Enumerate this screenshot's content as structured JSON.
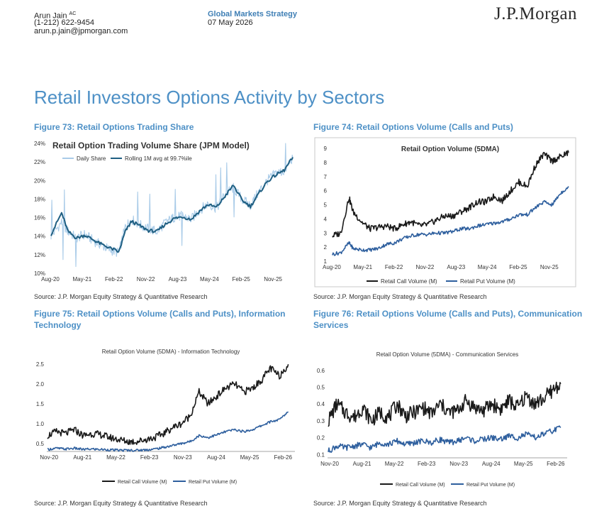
{
  "header": {
    "author_name": "Arun Jain",
    "author_sup": "AC",
    "phone": "(1-212) 622-9454",
    "email": "arun.p.jain@jpmorgan.com",
    "publication": "Global Markets Strategy",
    "date": "07 May 2026",
    "logo": "J.P.Morgan"
  },
  "page_title": "Retail Investors Options Activity by Sectors",
  "figures": {
    "f73": {
      "caption": "Figure 73: Retail Options Trading Share",
      "source": "Source: J.P. Morgan Equity Strategy & Quantitative Research"
    },
    "f74": {
      "caption": "Figure 74: Retail Options Volume (Calls and Puts)",
      "source": "Source: J.P. Morgan Equity Strategy & Quantitative Research"
    },
    "f75": {
      "caption_line1": "Figure 75: Retail Options Volume (Calls and Puts), Information",
      "caption_line2": "Technology",
      "source": "Source: J.P. Morgan Equity Strategy & Quantitative Research"
    },
    "f76": {
      "caption_line1": "Figure 76: Retail Options Volume (Calls and Puts), Communication",
      "caption_line2": "Services",
      "source": "Source: J.P. Morgan Equity Strategy & Quantitative Research"
    }
  },
  "colors": {
    "light_blue": "#a9cbe8",
    "dark_teal": "#1f5f82",
    "black": "#1a1a1a",
    "put_blue": "#2e5f9e",
    "caption_blue": "#4d90c6"
  },
  "chart_data": [
    {
      "id": "f73",
      "type": "line",
      "title": "Retail Option Trading Volume Share (JPM Model)",
      "x_tick_labels": [
        "Aug-20",
        "May-21",
        "Feb-22",
        "Nov-22",
        "Aug-23",
        "May-24",
        "Feb-25",
        "Nov-25"
      ],
      "y_tick_labels": [
        "10%",
        "12%",
        "14%",
        "16%",
        "18%",
        "20%",
        "22%",
        "24%"
      ],
      "ylim": [
        10,
        24
      ],
      "y_unit": "%",
      "legend_position": "top",
      "series": [
        {
          "name": "Daily Share",
          "x": [
            2020.6,
            2020.85,
            2021.0,
            2021.2,
            2021.4,
            2021.6,
            2021.8,
            2022.0,
            2022.2,
            2022.35,
            2022.5,
            2022.7,
            2022.9,
            2023.1,
            2023.3,
            2023.5,
            2023.7,
            2023.9,
            2024.1,
            2024.3,
            2024.5,
            2024.7,
            2024.9,
            2025.1,
            2025.3,
            2025.5,
            2025.7,
            2025.9,
            2026.1,
            2026.3
          ],
          "values": [
            14,
            15.5,
            14.5,
            13.8,
            14.2,
            13.5,
            13,
            12.5,
            12.2,
            15,
            15.8,
            15.2,
            14.8,
            14.5,
            15.5,
            16,
            16.2,
            15.8,
            16.8,
            17.5,
            17,
            18.5,
            19.2,
            18,
            17.3,
            18.8,
            20,
            20.8,
            21,
            22.5
          ]
        },
        {
          "name": "Rolling 1M avg at 99.7%ile",
          "x": [
            2020.6,
            2020.85,
            2021.0,
            2021.2,
            2021.4,
            2021.6,
            2021.8,
            2022.0,
            2022.2,
            2022.35,
            2022.5,
            2022.7,
            2022.9,
            2023.1,
            2023.3,
            2023.5,
            2023.7,
            2023.9,
            2024.1,
            2024.3,
            2024.5,
            2024.7,
            2024.9,
            2025.1,
            2025.3,
            2025.5,
            2025.7,
            2025.9,
            2026.1,
            2026.3
          ],
          "values": [
            14.2,
            16.5,
            14.5,
            13.8,
            14.1,
            13.6,
            13.1,
            12.7,
            12.3,
            14.5,
            15.6,
            15.1,
            14.6,
            14.5,
            15.3,
            15.9,
            16.1,
            15.8,
            16.7,
            17.4,
            17.1,
            18.3,
            19.5,
            17.9,
            17.2,
            18.6,
            19.9,
            20.6,
            21.1,
            22.5
          ]
        }
      ]
    },
    {
      "id": "f74",
      "type": "line",
      "title": "Retail Option Volume (5DMA)",
      "x_tick_labels": [
        "Aug-20",
        "May-21",
        "Feb-22",
        "Nov-22",
        "Aug-23",
        "May-24",
        "Feb-25",
        "Nov-25"
      ],
      "y_tick_labels": [
        "1",
        "2",
        "3",
        "4",
        "5",
        "6",
        "7",
        "8",
        "9"
      ],
      "ylim": [
        1,
        9
      ],
      "series": [
        {
          "name": "Retail Call Volume (M)",
          "x": [
            2020.6,
            2020.8,
            2021.0,
            2021.1,
            2021.3,
            2021.5,
            2021.7,
            2021.9,
            2022.1,
            2022.3,
            2022.5,
            2022.7,
            2022.9,
            2023.1,
            2023.3,
            2023.5,
            2023.7,
            2023.9,
            2024.1,
            2024.3,
            2024.5,
            2024.7,
            2024.9,
            2025.1,
            2025.3,
            2025.5,
            2025.7,
            2025.9,
            2026.1,
            2026.3
          ],
          "values": [
            2.8,
            3.0,
            5.5,
            4.5,
            3.8,
            3.3,
            3.4,
            3.5,
            3.3,
            3.6,
            3.8,
            3.5,
            3.6,
            3.9,
            4.2,
            4.2,
            4.5,
            4.8,
            5.2,
            5.2,
            5.6,
            5.3,
            6.0,
            6.6,
            6.3,
            7.8,
            8.6,
            8.1,
            8.4,
            8.7
          ]
        },
        {
          "name": "Retail Put Volume (M)",
          "x": [
            2020.6,
            2020.8,
            2021.0,
            2021.1,
            2021.3,
            2021.5,
            2021.7,
            2021.9,
            2022.1,
            2022.3,
            2022.5,
            2022.7,
            2022.9,
            2023.1,
            2023.3,
            2023.5,
            2023.7,
            2023.9,
            2024.1,
            2024.3,
            2024.5,
            2024.7,
            2024.9,
            2025.1,
            2025.3,
            2025.5,
            2025.7,
            2025.9,
            2026.1,
            2026.3
          ],
          "values": [
            1.5,
            1.6,
            2.3,
            1.9,
            1.8,
            1.8,
            1.9,
            2.2,
            2.3,
            2.6,
            2.8,
            2.9,
            2.9,
            3.0,
            3.0,
            3.1,
            3.3,
            3.3,
            3.5,
            3.6,
            3.7,
            3.8,
            4.0,
            4.3,
            4.3,
            4.8,
            5.2,
            5.0,
            5.8,
            6.3
          ]
        }
      ]
    },
    {
      "id": "f75",
      "type": "line",
      "title": "Retail Option Volume (5DMA) - Information Technology",
      "x_tick_labels": [
        "Nov-20",
        "Aug-21",
        "May-22",
        "Feb-23",
        "Nov-23",
        "Aug-24",
        "May-25",
        "Feb-26"
      ],
      "y_tick_labels": [
        "0.5",
        "1.0",
        "1.5",
        "2.0",
        "2.5"
      ],
      "ylim": [
        0.3,
        2.7
      ],
      "series": [
        {
          "name": "Retail Call Volume (M)",
          "x": [
            2020.8,
            2021.0,
            2021.2,
            2021.4,
            2021.6,
            2021.8,
            2022.0,
            2022.2,
            2022.4,
            2022.6,
            2022.8,
            2023.0,
            2023.2,
            2023.4,
            2023.6,
            2023.8,
            2024.0,
            2024.2,
            2024.4,
            2024.6,
            2024.8,
            2025.0,
            2025.2,
            2025.4,
            2025.6,
            2025.8,
            2026.0,
            2026.2
          ],
          "values": [
            0.7,
            0.8,
            0.75,
            0.85,
            0.7,
            0.75,
            0.72,
            0.65,
            0.6,
            0.55,
            0.55,
            0.6,
            0.65,
            0.75,
            0.9,
            1.0,
            1.2,
            1.8,
            1.5,
            1.7,
            1.9,
            2.0,
            1.8,
            1.9,
            2.1,
            2.4,
            2.2,
            2.5
          ]
        },
        {
          "name": "Retail Put Volume (M)",
          "x": [
            2020.8,
            2021.0,
            2021.2,
            2021.4,
            2021.6,
            2021.8,
            2022.0,
            2022.2,
            2022.4,
            2022.6,
            2022.8,
            2023.0,
            2023.2,
            2023.4,
            2023.6,
            2023.8,
            2024.0,
            2024.2,
            2024.4,
            2024.6,
            2024.8,
            2025.0,
            2025.2,
            2025.4,
            2025.6,
            2025.8,
            2026.0,
            2026.2
          ],
          "values": [
            0.35,
            0.38,
            0.36,
            0.38,
            0.35,
            0.36,
            0.35,
            0.34,
            0.33,
            0.33,
            0.33,
            0.34,
            0.36,
            0.4,
            0.45,
            0.5,
            0.55,
            0.7,
            0.65,
            0.72,
            0.8,
            0.85,
            0.8,
            0.85,
            0.95,
            1.05,
            1.1,
            1.3
          ]
        }
      ]
    },
    {
      "id": "f76",
      "type": "line",
      "title": "Retail Option Volume (5DMA) - Communication Services",
      "x_tick_labels": [
        "Nov-20",
        "Aug-21",
        "May-22",
        "Feb-23",
        "Nov-23",
        "Aug-24",
        "May-25",
        "Feb-26"
      ],
      "y_tick_labels": [
        "0.1",
        "0.2",
        "0.3",
        "0.4",
        "0.5",
        "0.6"
      ],
      "ylim": [
        0.08,
        0.65
      ],
      "series": [
        {
          "name": "Retail Call Volume (M)",
          "x": [
            2020.8,
            2021.0,
            2021.2,
            2021.4,
            2021.6,
            2021.8,
            2022.0,
            2022.2,
            2022.4,
            2022.6,
            2022.8,
            2023.0,
            2023.2,
            2023.4,
            2023.6,
            2023.8,
            2024.0,
            2024.2,
            2024.4,
            2024.6,
            2024.8,
            2025.0,
            2025.2,
            2025.4,
            2025.6,
            2025.8,
            2026.0,
            2026.2
          ],
          "values": [
            0.3,
            0.4,
            0.35,
            0.32,
            0.38,
            0.3,
            0.35,
            0.32,
            0.4,
            0.33,
            0.35,
            0.38,
            0.34,
            0.4,
            0.35,
            0.36,
            0.42,
            0.38,
            0.36,
            0.4,
            0.37,
            0.42,
            0.38,
            0.45,
            0.4,
            0.43,
            0.48,
            0.52
          ]
        },
        {
          "name": "Retail Put Volume (M)",
          "x": [
            2020.8,
            2021.0,
            2021.2,
            2021.4,
            2021.6,
            2021.8,
            2022.0,
            2022.2,
            2022.4,
            2022.6,
            2022.8,
            2023.0,
            2023.2,
            2023.4,
            2023.6,
            2023.8,
            2024.0,
            2024.2,
            2024.4,
            2024.6,
            2024.8,
            2025.0,
            2025.2,
            2025.4,
            2025.6,
            2025.8,
            2026.0,
            2026.2
          ],
          "values": [
            0.12,
            0.15,
            0.14,
            0.15,
            0.16,
            0.14,
            0.17,
            0.16,
            0.18,
            0.16,
            0.17,
            0.18,
            0.17,
            0.19,
            0.17,
            0.18,
            0.2,
            0.18,
            0.19,
            0.2,
            0.19,
            0.21,
            0.2,
            0.22,
            0.2,
            0.22,
            0.24,
            0.26
          ]
        }
      ]
    }
  ]
}
